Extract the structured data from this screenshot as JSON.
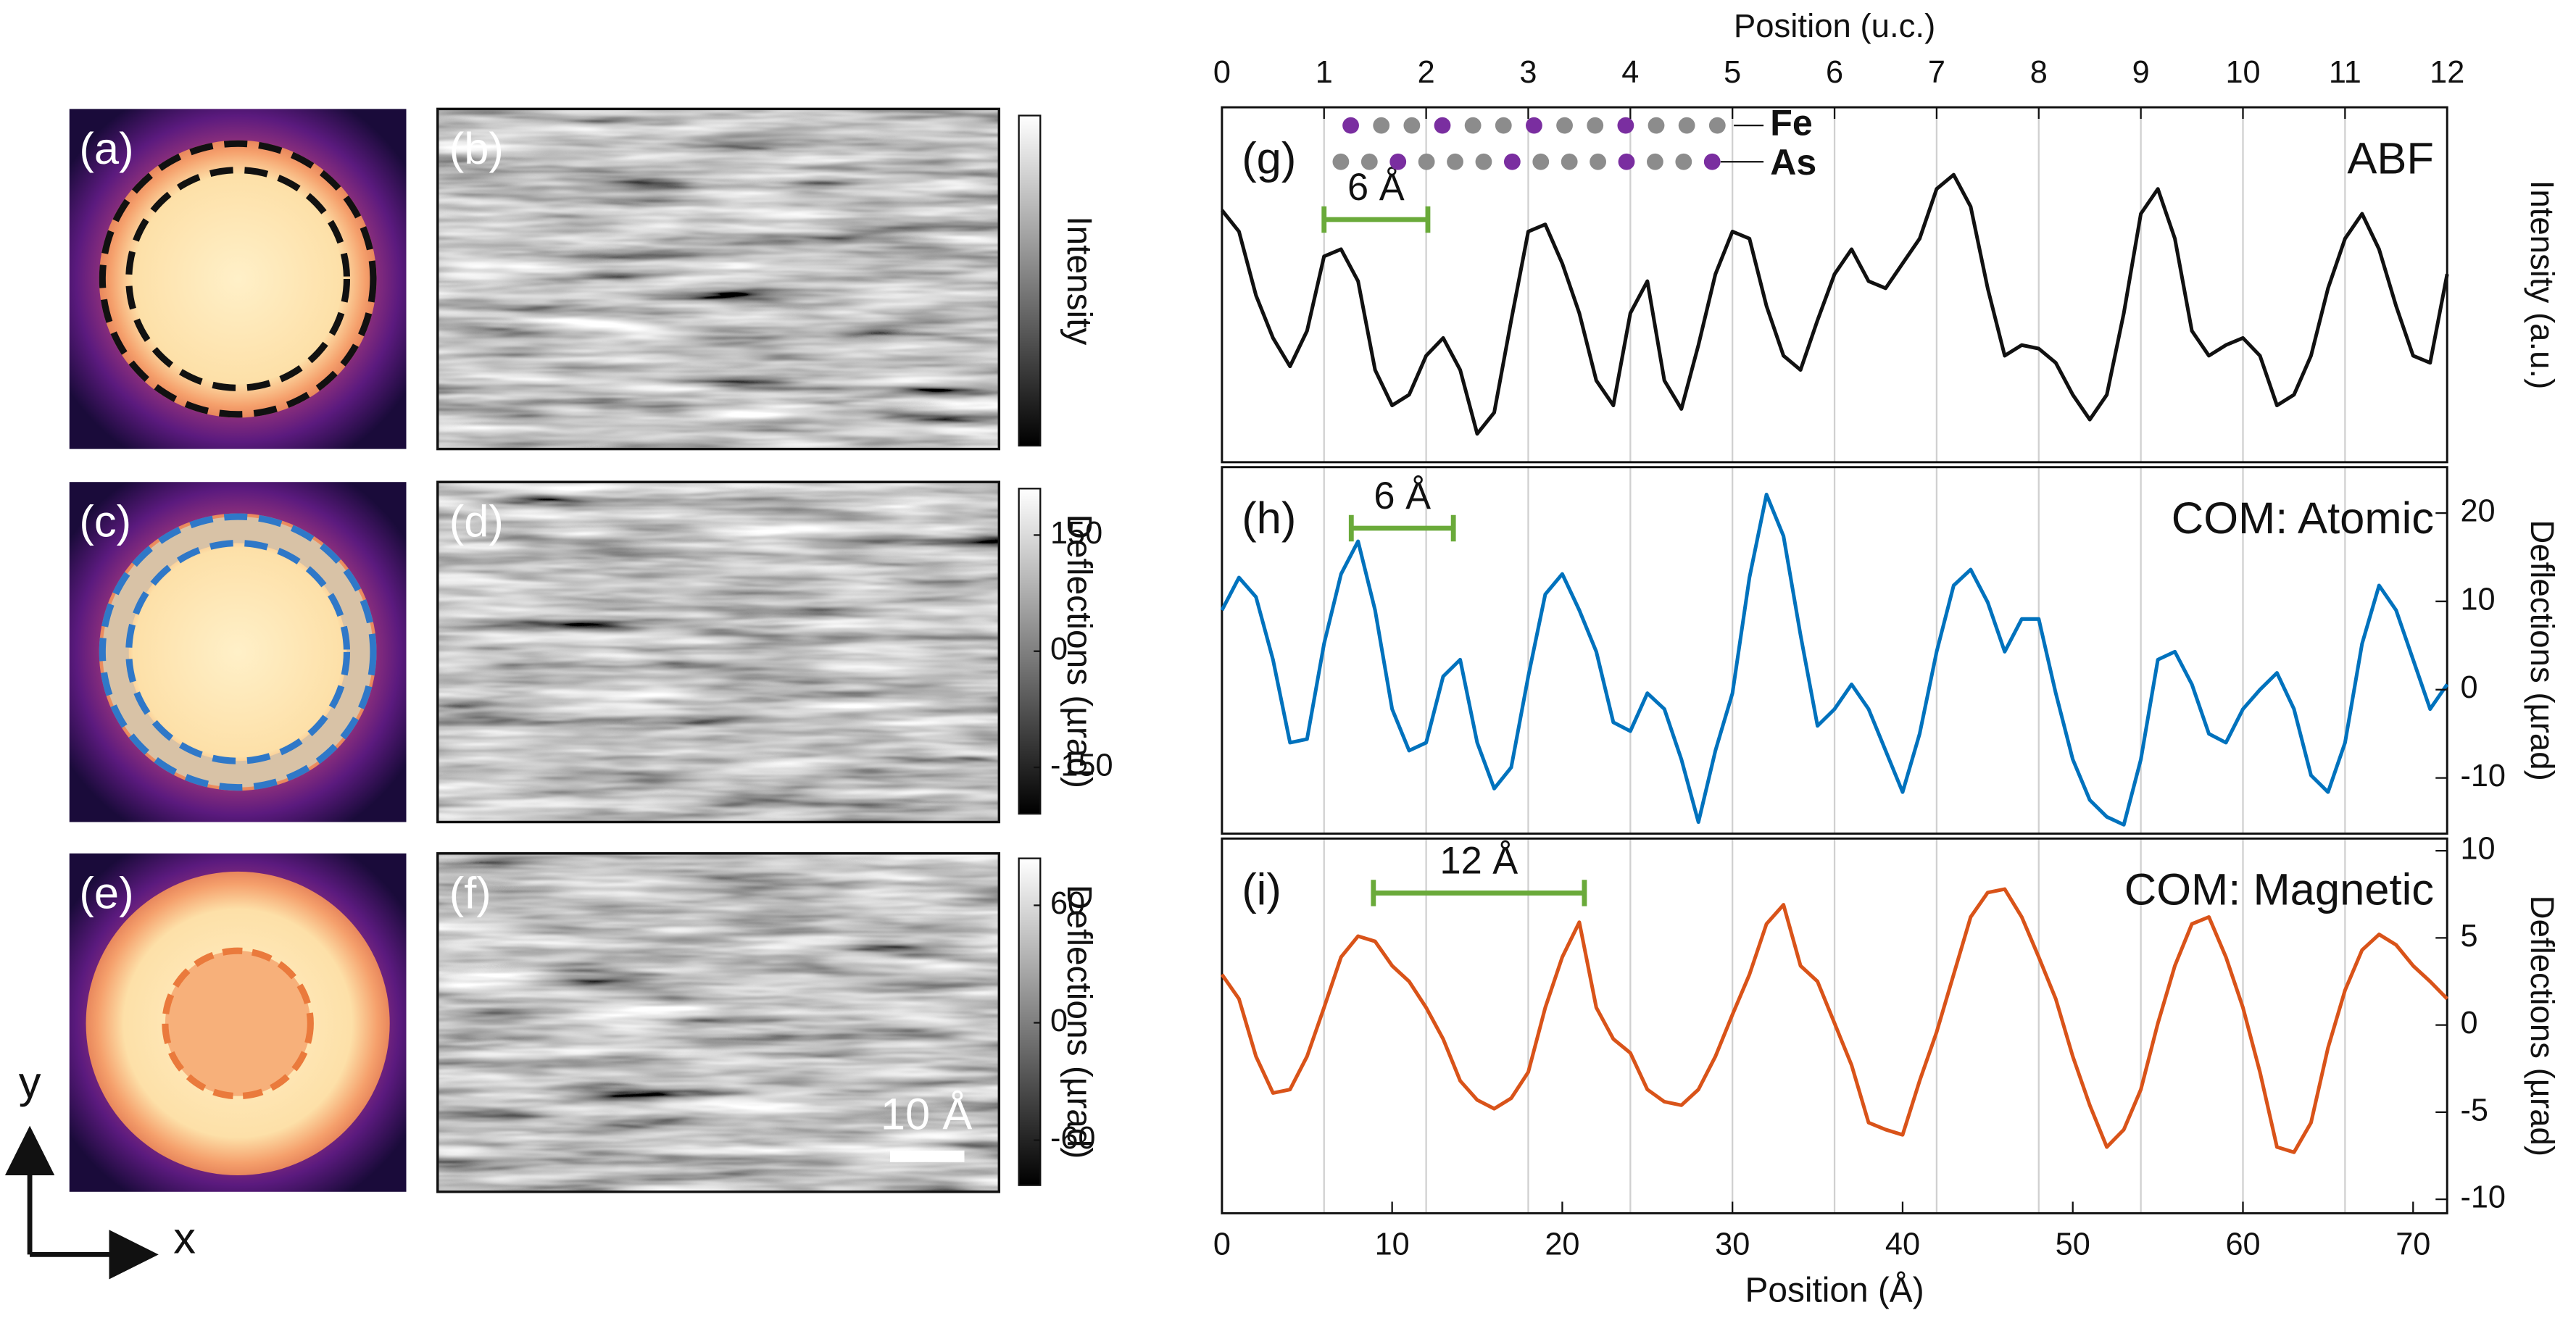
{
  "images": [
    {
      "label": "(a)"
    },
    {
      "label": "(b)",
      "colorbar": {
        "title": "Intensity"
      }
    },
    {
      "label": "(c)"
    },
    {
      "label": "(d)",
      "colorbar": {
        "title": "Deflections (µrad)",
        "lim": [
          -210,
          210
        ],
        "ticks": [
          150,
          0,
          -150
        ]
      }
    },
    {
      "label": "(e)"
    },
    {
      "label": "(f)",
      "colorbar": {
        "title": "Deflections (µrad)",
        "lim": [
          -83,
          84
        ],
        "ticks": [
          60,
          0,
          -60
        ]
      },
      "scale_bar": "10 Å"
    }
  ],
  "axes_labels": {
    "x": "x",
    "y": "y"
  },
  "chart_data": [
    {
      "type": "line",
      "panel_label": "(g)",
      "label": "ABF",
      "color": "#111111",
      "ylabel": "Intensity (a.u.)",
      "x2label": "Position (u.c.)",
      "x2lim": [
        0,
        12
      ],
      "x2ticks": [
        0,
        1,
        2,
        3,
        4,
        5,
        6,
        7,
        8,
        9,
        10,
        11,
        12
      ],
      "grid": true,
      "xlim": [
        0,
        72
      ],
      "ylim": [
        0,
        1
      ],
      "atom_labels": [
        "Fe",
        "As"
      ],
      "annotation": {
        "text": "6 Å",
        "x": [
          6,
          12.1
        ]
      },
      "x": [
        0,
        1,
        2,
        3,
        4,
        5,
        6,
        7,
        8,
        9,
        10,
        11,
        12,
        13,
        14,
        15,
        16,
        17,
        18,
        19,
        20,
        21,
        22,
        23,
        24,
        25,
        26,
        27,
        28,
        29,
        30,
        31,
        32,
        33,
        34,
        35,
        36,
        37,
        38,
        39,
        40,
        41,
        42,
        43,
        44,
        45,
        46,
        47,
        48,
        49,
        50,
        51,
        52,
        53,
        54,
        55,
        56,
        57,
        58,
        59,
        60,
        61,
        62,
        63,
        64,
        65,
        66,
        67,
        68,
        69,
        70,
        71,
        72
      ],
      "values": [
        0.71,
        0.65,
        0.47,
        0.35,
        0.27,
        0.37,
        0.58,
        0.6,
        0.51,
        0.26,
        0.16,
        0.19,
        0.3,
        0.35,
        0.26,
        0.08,
        0.14,
        0.4,
        0.65,
        0.67,
        0.56,
        0.42,
        0.23,
        0.16,
        0.42,
        0.51,
        0.23,
        0.15,
        0.33,
        0.53,
        0.65,
        0.63,
        0.44,
        0.3,
        0.26,
        0.4,
        0.53,
        0.6,
        0.51,
        0.49,
        0.56,
        0.63,
        0.77,
        0.81,
        0.72,
        0.49,
        0.3,
        0.33,
        0.32,
        0.28,
        0.19,
        0.12,
        0.19,
        0.42,
        0.7,
        0.77,
        0.63,
        0.37,
        0.3,
        0.33,
        0.35,
        0.3,
        0.16,
        0.19,
        0.3,
        0.49,
        0.63,
        0.7,
        0.6,
        0.44,
        0.3,
        0.28,
        0.53
      ]
    },
    {
      "type": "line",
      "panel_label": "(h)",
      "label": "COM: Atomic",
      "color": "#0072bd",
      "ylabel": "Deflections (µrad)",
      "xlim": [
        0,
        72
      ],
      "ylim": [
        -16.3,
        25.2
      ],
      "yticks": [
        -10,
        0,
        10,
        20
      ],
      "grid": true,
      "annotation": {
        "text": "6 Å",
        "x": [
          7.6,
          13.6
        ]
      },
      "x": [
        0,
        1,
        2,
        3,
        4,
        5,
        6,
        7,
        8,
        9,
        10,
        11,
        12,
        13,
        14,
        15,
        16,
        17,
        18,
        19,
        20,
        21,
        22,
        23,
        24,
        25,
        26,
        27,
        28,
        29,
        30,
        31,
        32,
        33,
        34,
        35,
        36,
        37,
        38,
        39,
        40,
        41,
        42,
        43,
        44,
        45,
        46,
        47,
        48,
        49,
        50,
        51,
        52,
        53,
        54,
        55,
        56,
        57,
        58,
        59,
        60,
        61,
        62,
        63,
        64,
        65,
        66,
        67,
        68,
        69,
        70,
        71,
        72
      ],
      "values": [
        9.0,
        12.7,
        10.5,
        3.4,
        -6.0,
        -5.6,
        5.2,
        13.1,
        16.8,
        9.0,
        -2.2,
        -6.9,
        -6.0,
        1.5,
        3.4,
        -6.0,
        -11.2,
        -8.8,
        1.5,
        10.8,
        13.1,
        9.0,
        4.3,
        -3.7,
        -4.7,
        -0.4,
        -2.2,
        -7.9,
        -15.0,
        -6.9,
        -0.4,
        12.7,
        22.1,
        17.4,
        6.2,
        -4.1,
        -2.2,
        0.6,
        -2.2,
        -6.9,
        -11.6,
        -5.0,
        4.3,
        11.8,
        13.6,
        9.9,
        4.3,
        8.0,
        8.0,
        -0.4,
        -7.9,
        -12.5,
        -14.4,
        -15.3,
        -7.9,
        3.4,
        4.3,
        0.6,
        -5.0,
        -6.0,
        -2.2,
        0.0,
        1.9,
        -2.2,
        -9.7,
        -11.6,
        -6.0,
        5.2,
        11.8,
        9.0,
        3.4,
        -2.2,
        0.6
      ]
    },
    {
      "type": "line",
      "panel_label": "(i)",
      "label": "COM: Magnetic",
      "color": "#d95319",
      "ylabel": "Deflections (µrad)",
      "xlabel": "Position (Å)",
      "xlim": [
        0,
        72
      ],
      "xticks": [
        0,
        10,
        20,
        30,
        40,
        50,
        60,
        70
      ],
      "ylim": [
        -10.8,
        10.7
      ],
      "yticks": [
        -10,
        -5,
        0,
        5,
        10
      ],
      "grid": true,
      "annotation": {
        "text": "12 Å",
        "x": [
          8.9,
          21.3
        ]
      },
      "x": [
        0,
        1,
        2,
        3,
        4,
        5,
        6,
        7,
        8,
        9,
        10,
        11,
        12,
        13,
        14,
        15,
        16,
        17,
        18,
        19,
        20,
        21,
        22,
        23,
        24,
        25,
        26,
        27,
        28,
        29,
        30,
        31,
        32,
        33,
        34,
        35,
        36,
        37,
        38,
        39,
        40,
        41,
        42,
        43,
        44,
        45,
        46,
        47,
        48,
        49,
        50,
        51,
        52,
        53,
        54,
        55,
        56,
        57,
        58,
        59,
        60,
        61,
        62,
        63,
        64,
        65,
        66,
        67,
        68,
        69,
        70,
        71,
        72
      ],
      "values": [
        2.9,
        1.5,
        -1.8,
        -3.9,
        -3.7,
        -1.8,
        1.0,
        3.9,
        5.1,
        4.8,
        3.4,
        2.5,
        1.0,
        -0.8,
        -3.2,
        -4.3,
        -4.8,
        -4.2,
        -2.7,
        1.0,
        3.9,
        5.9,
        1.0,
        -0.8,
        -1.6,
        -3.7,
        -4.4,
        -4.6,
        -3.7,
        -1.8,
        0.6,
        2.9,
        5.8,
        6.9,
        3.4,
        2.5,
        0.1,
        -2.3,
        -5.6,
        -6.0,
        -6.3,
        -3.2,
        -0.4,
        2.9,
        6.2,
        7.6,
        7.8,
        6.2,
        3.9,
        1.5,
        -1.8,
        -4.6,
        -7.0,
        -6.0,
        -3.7,
        0.1,
        3.4,
        5.8,
        6.2,
        3.9,
        1.0,
        -2.7,
        -7.0,
        -7.3,
        -5.6,
        -1.3,
        2.0,
        4.3,
        5.2,
        4.6,
        3.4,
        2.5,
        1.5
      ]
    }
  ]
}
